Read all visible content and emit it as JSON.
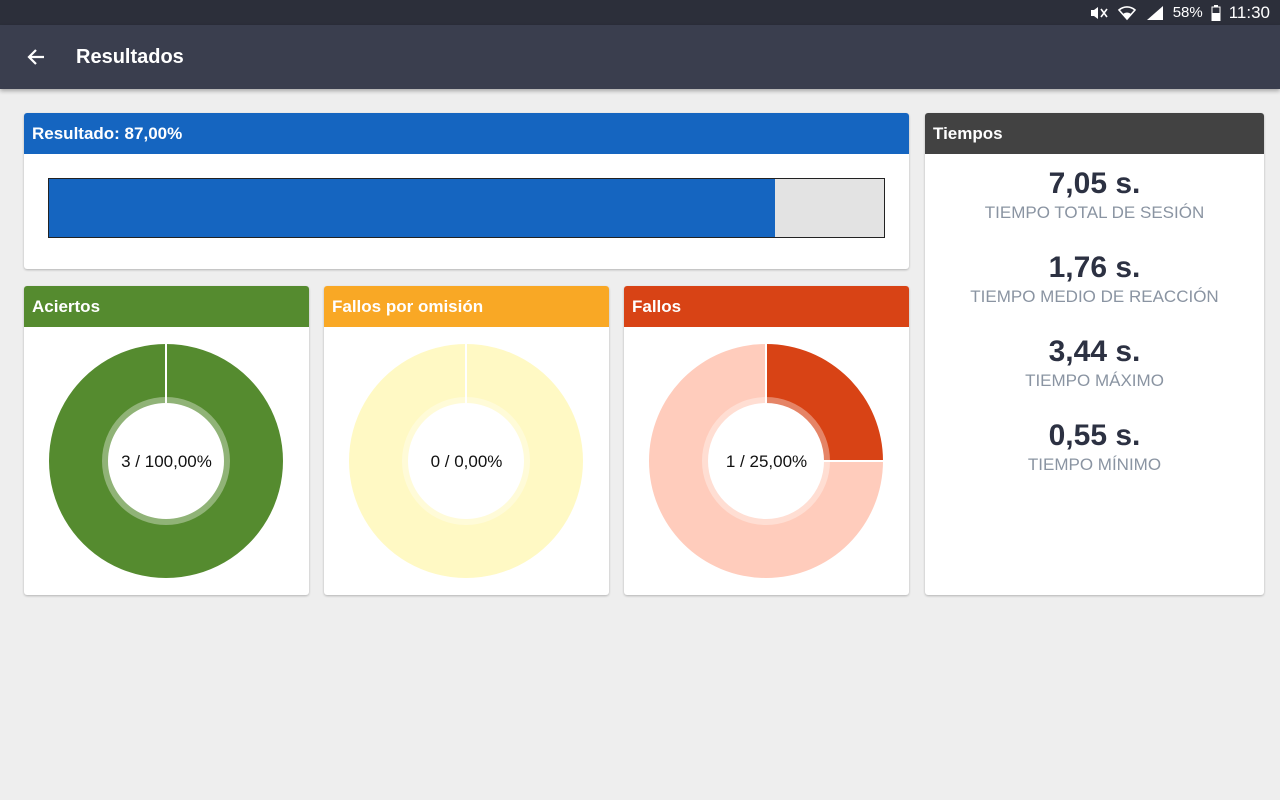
{
  "status_bar": {
    "battery": "58%",
    "time": "11:30",
    "icons": [
      "mute-icon",
      "wifi-icon",
      "signal-icon",
      "battery-icon"
    ]
  },
  "app_bar": {
    "title": "Resultados",
    "back_icon": "arrow-back-icon"
  },
  "result": {
    "header": "Resultado: 87,00%",
    "progress_fraction": 0.87,
    "color": "#1565c0"
  },
  "cards": {
    "hits": {
      "header": "Aciertos",
      "center_label": "3 / 100,00%",
      "fraction": 1.0,
      "color": "#558b2f",
      "track_color": "#dcedc8"
    },
    "omissions": {
      "header": "Fallos por omisión",
      "center_label": "0 / 0,00%",
      "fraction": 0.0,
      "color": "#f9a825",
      "track_color": "#fff9c4"
    },
    "failures": {
      "header": "Fallos",
      "center_label": "1 / 25,00%",
      "fraction": 0.25,
      "color": "#d84315",
      "track_color": "#ffccbc"
    }
  },
  "times": {
    "header": "Tiempos",
    "items": [
      {
        "value": "7,05 s.",
        "label": "TIEMPO TOTAL DE SESIÓN"
      },
      {
        "value": "1,76 s.",
        "label": "TIEMPO MEDIO DE REACCIÓN"
      },
      {
        "value": "3,44 s.",
        "label": "TIEMPO MÁXIMO"
      },
      {
        "value": "0,55 s.",
        "label": "TIEMPO MÍNIMO"
      }
    ]
  }
}
